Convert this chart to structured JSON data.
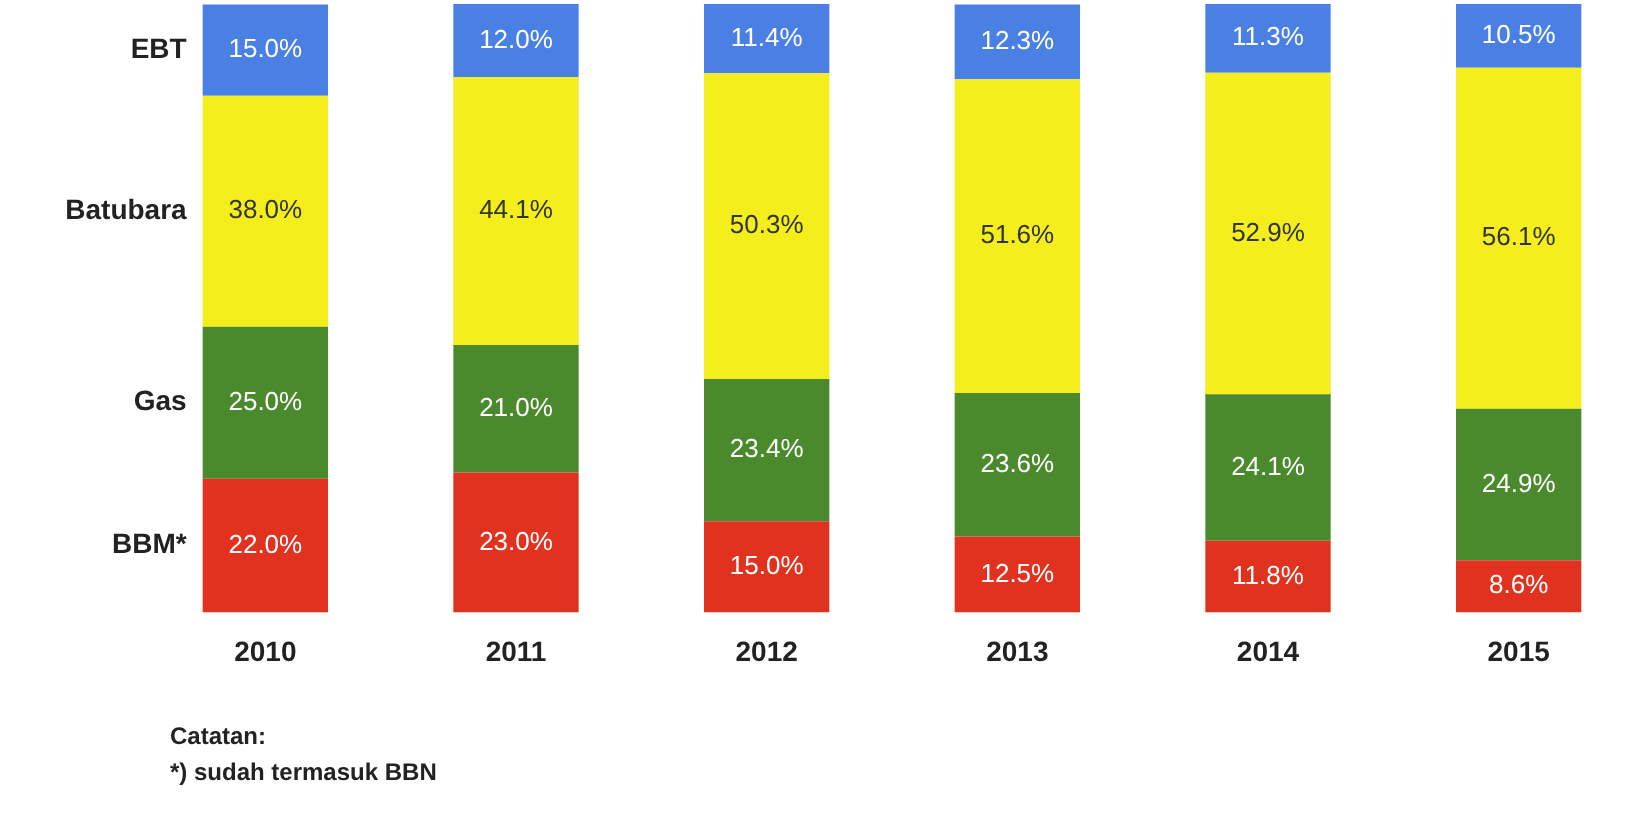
{
  "chart_data": {
    "type": "bar",
    "stacked": true,
    "legend": false,
    "grid": false,
    "tick_labels": "x",
    "categories": [
      "2010",
      "2011",
      "2012",
      "2013",
      "2014",
      "2015"
    ],
    "series": [
      {
        "name": "BBM*",
        "color": "#e0321f",
        "values": [
          22.0,
          23.0,
          15.0,
          12.5,
          11.8,
          8.6
        ],
        "value_labels": [
          "22.0%",
          "23.0%",
          "15.0%",
          "12.5%",
          "11.8%",
          "8.6%"
        ]
      },
      {
        "name": "Gas",
        "color": "#4a8a2c",
        "values": [
          25.0,
          21.0,
          23.4,
          23.6,
          24.1,
          24.9
        ],
        "value_labels": [
          "25.0%",
          "21.0%",
          "23.4%",
          "23.6%",
          "24.1%",
          "24.9%"
        ]
      },
      {
        "name": "Batubara",
        "color": "#f4ef1c",
        "values": [
          38.0,
          44.1,
          50.3,
          51.6,
          52.9,
          56.1
        ],
        "value_labels": [
          "38.0%",
          "44.1%",
          "50.3%",
          "51.6%",
          "52.9%",
          "56.1%"
        ]
      },
      {
        "name": "EBT",
        "color": "#4a80e4",
        "values": [
          15.0,
          12.0,
          11.4,
          12.3,
          11.3,
          10.5
        ],
        "value_labels": [
          "15.0%",
          "12.0%",
          "11.4%",
          "12.3%",
          "11.3%",
          "10.5%"
        ]
      }
    ],
    "annotations": [
      "Catatan:",
      "*) sudah termasuk BBN"
    ]
  }
}
